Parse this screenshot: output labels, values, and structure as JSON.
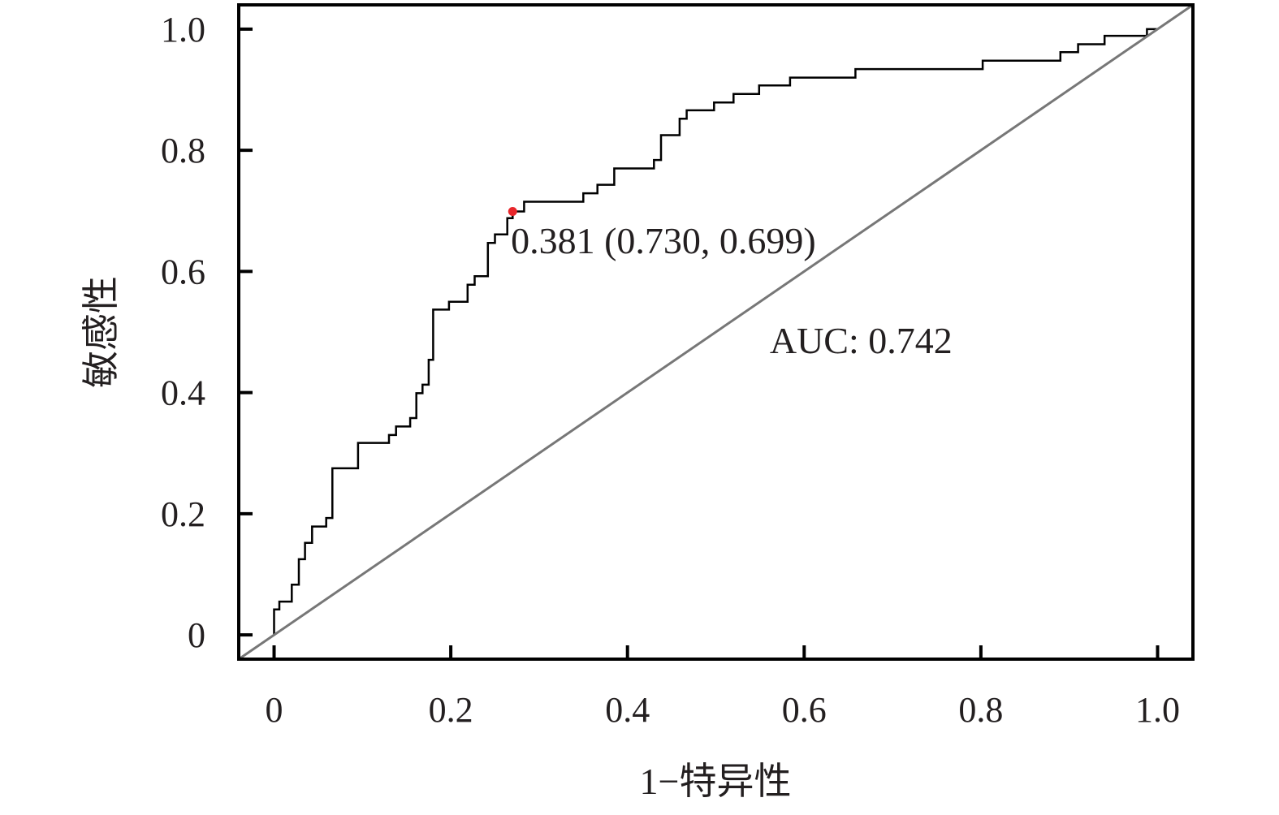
{
  "chart_data": {
    "type": "line",
    "title": "",
    "xlabel": "1−特异性",
    "ylabel": "敏感性",
    "xlim": [
      -0.04,
      1.04
    ],
    "ylim": [
      -0.04,
      1.04
    ],
    "x_ticks": [
      0,
      0.2,
      0.4,
      0.6,
      0.8,
      1.0
    ],
    "y_ticks": [
      0,
      0.2,
      0.4,
      0.6,
      0.8,
      1.0
    ],
    "x_tick_labels": [
      "0",
      "0.2",
      "0.4",
      "0.6",
      "0.8",
      "1.0"
    ],
    "y_tick_labels": [
      "0",
      "0.2",
      "0.4",
      "0.6",
      "0.8",
      "1.0"
    ],
    "grid": false,
    "series": [
      {
        "style": "step",
        "color": "#000000",
        "points": [
          [
            0,
            0
          ],
          [
            0,
            0.042
          ],
          [
            0.006,
            0.042
          ],
          [
            0.006,
            0.055
          ],
          [
            0.02,
            0.055
          ],
          [
            0.02,
            0.083
          ],
          [
            0.028,
            0.083
          ],
          [
            0.028,
            0.125
          ],
          [
            0.035,
            0.125
          ],
          [
            0.035,
            0.152
          ],
          [
            0.043,
            0.152
          ],
          [
            0.043,
            0.179
          ],
          [
            0.059,
            0.179
          ],
          [
            0.059,
            0.193
          ],
          [
            0.066,
            0.193
          ],
          [
            0.066,
            0.275
          ],
          [
            0.095,
            0.275
          ],
          [
            0.095,
            0.317
          ],
          [
            0.13,
            0.317
          ],
          [
            0.13,
            0.33
          ],
          [
            0.138,
            0.33
          ],
          [
            0.138,
            0.344
          ],
          [
            0.154,
            0.344
          ],
          [
            0.154,
            0.358
          ],
          [
            0.161,
            0.358
          ],
          [
            0.161,
            0.399
          ],
          [
            0.168,
            0.399
          ],
          [
            0.168,
            0.413
          ],
          [
            0.175,
            0.413
          ],
          [
            0.175,
            0.454
          ],
          [
            0.18,
            0.454
          ],
          [
            0.18,
            0.537
          ],
          [
            0.198,
            0.537
          ],
          [
            0.198,
            0.55
          ],
          [
            0.219,
            0.55
          ],
          [
            0.219,
            0.578
          ],
          [
            0.227,
            0.578
          ],
          [
            0.227,
            0.592
          ],
          [
            0.242,
            0.592
          ],
          [
            0.242,
            0.647
          ],
          [
            0.25,
            0.647
          ],
          [
            0.25,
            0.661
          ],
          [
            0.264,
            0.661
          ],
          [
            0.264,
            0.688
          ],
          [
            0.27,
            0.688
          ],
          [
            0.27,
            0.699
          ],
          [
            0.283,
            0.699
          ],
          [
            0.283,
            0.715
          ],
          [
            0.35,
            0.715
          ],
          [
            0.35,
            0.729
          ],
          [
            0.366,
            0.729
          ],
          [
            0.366,
            0.743
          ],
          [
            0.385,
            0.743
          ],
          [
            0.385,
            0.77
          ],
          [
            0.43,
            0.77
          ],
          [
            0.43,
            0.784
          ],
          [
            0.438,
            0.784
          ],
          [
            0.438,
            0.825
          ],
          [
            0.459,
            0.825
          ],
          [
            0.459,
            0.852
          ],
          [
            0.467,
            0.852
          ],
          [
            0.467,
            0.866
          ],
          [
            0.498,
            0.866
          ],
          [
            0.498,
            0.879
          ],
          [
            0.52,
            0.879
          ],
          [
            0.52,
            0.893
          ],
          [
            0.549,
            0.893
          ],
          [
            0.549,
            0.907
          ],
          [
            0.584,
            0.907
          ],
          [
            0.584,
            0.92
          ],
          [
            0.658,
            0.92
          ],
          [
            0.658,
            0.934
          ],
          [
            0.802,
            0.934
          ],
          [
            0.802,
            0.948
          ],
          [
            0.89,
            0.948
          ],
          [
            0.89,
            0.962
          ],
          [
            0.91,
            0.962
          ],
          [
            0.91,
            0.975
          ],
          [
            0.94,
            0.975
          ],
          [
            0.94,
            0.989
          ],
          [
            0.988,
            0.989
          ],
          [
            0.988,
            1.0
          ],
          [
            1.0,
            1.0
          ]
        ]
      },
      {
        "style": "diagonal",
        "color": "#777777",
        "points": [
          [
            -0.04,
            -0.04
          ],
          [
            1.04,
            1.04
          ]
        ]
      }
    ],
    "highlight_point": {
      "x": 0.27,
      "y": 0.699,
      "color": "#e8262b"
    },
    "annotations": [
      {
        "text": "0.381 (0.730, 0.699)",
        "x": 0.268,
        "y": 0.63
      },
      {
        "text": "AUC: 0.742",
        "x": 0.561,
        "y": 0.465
      }
    ]
  }
}
